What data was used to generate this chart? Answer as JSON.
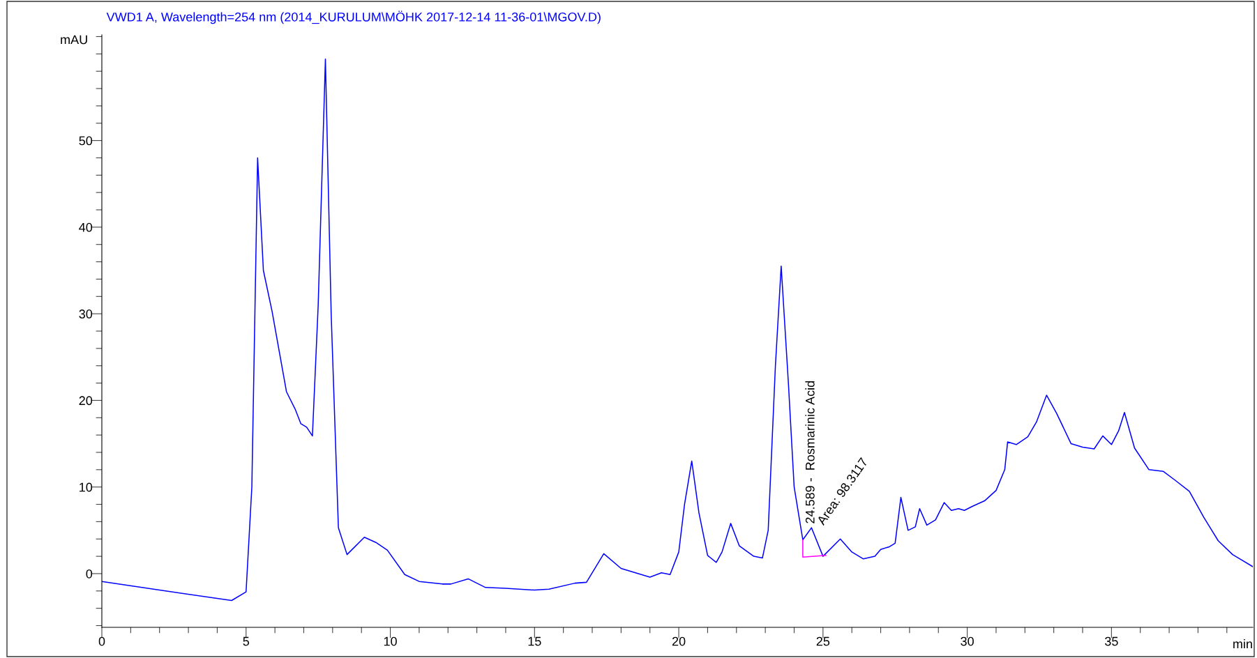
{
  "chart_data": {
    "type": "line",
    "title": "VWD1 A, Wavelength=254 nm (2014_KURULUM\\MÖHK 2017-12-14 11-36-01\\MGOV.D)",
    "ylabel": "mAU",
    "xlabel": "min",
    "series": [
      {
        "color": "#0000ff",
        "x": [
          0,
          2,
          4.5,
          5.0,
          5.2,
          5.4,
          5.6,
          5.9,
          6.4,
          6.7,
          6.9,
          7.1,
          7.3,
          7.5,
          7.75,
          7.95,
          8.2,
          8.5,
          9.1,
          9.5,
          9.9,
          10.5,
          11,
          11.8,
          12.1,
          12.7,
          13.3,
          14,
          15,
          15.5,
          16.4,
          16.8,
          17.4,
          18,
          18.5,
          19,
          19.4,
          19.7,
          20.0,
          20.2,
          20.45,
          20.7,
          21.0,
          21.3,
          21.5,
          21.8,
          22.1,
          22.6,
          22.9,
          23.1,
          23.35,
          23.55,
          23.8,
          24.0,
          24.3,
          24.6,
          25.0,
          25.6,
          26.0,
          26.4,
          26.8,
          27.0,
          27.3,
          27.5,
          27.7,
          27.95,
          28.2,
          28.35,
          28.6,
          28.9,
          29.2,
          29.45,
          29.7,
          29.9,
          30.2,
          30.6,
          31.0,
          31.3,
          31.4,
          31.7,
          32.1,
          32.4,
          32.75,
          33.1,
          33.6,
          34.0,
          34.4,
          34.7,
          35.0,
          35.25,
          35.45,
          35.8,
          36.3,
          36.8,
          37.2,
          37.7,
          38.2,
          38.7,
          39.2,
          39.9
        ],
        "values": [
          -0.9,
          -1.9,
          -3.1,
          -2.1,
          10,
          48.0,
          35,
          30.3,
          21,
          19,
          17.3,
          16.9,
          15.9,
          31,
          59.4,
          30,
          5.3,
          2.2,
          4.2,
          3.6,
          2.7,
          -0.1,
          -0.9,
          -1.2,
          -1.2,
          -0.6,
          -1.6,
          -1.7,
          -1.9,
          -1.8,
          -1.1,
          -1,
          2.3,
          0.6,
          0.1,
          -0.4,
          0.1,
          -0.1,
          2.5,
          8,
          13.0,
          7,
          2.1,
          1.3,
          2.5,
          5.8,
          3.2,
          2.0,
          1.8,
          5,
          24,
          35.5,
          22,
          10,
          3.9,
          5.3,
          2.0,
          4.0,
          2.5,
          1.7,
          2.0,
          2.8,
          3.1,
          3.5,
          8.8,
          5.0,
          5.4,
          7.5,
          5.6,
          6.2,
          8.2,
          7.3,
          7.5,
          7.3,
          7.8,
          8.4,
          9.6,
          12,
          15.2,
          14.9,
          15.8,
          17.5,
          20.6,
          18.5,
          15.0,
          14.6,
          14.4,
          15.9,
          14.9,
          16.5,
          18.6,
          14.5,
          12.0,
          11.8,
          10.8,
          9.5,
          6.5,
          3.8,
          2.2,
          0.8
        ]
      },
      {
        "color": "#ff00ff",
        "x": [
          24.3,
          24.3,
          25.1
        ],
        "values": [
          3.9,
          1.9,
          2.1
        ]
      }
    ],
    "annotations": [
      {
        "text": "24.589 -  Rosmarinic Acid",
        "x": 24.589,
        "y": 5.3
      },
      "Area: 98.3117"
    ],
    "xlim": [
      0,
      39.9
    ],
    "ylim": [
      -6.2,
      62.2
    ],
    "xticks": [
      0,
      {
        "value": 1,
        "label": null
      },
      {
        "value": 2,
        "label": null
      },
      {
        "value": 3,
        "label": null
      },
      {
        "value": 4,
        "label": null
      },
      5,
      {
        "value": 6,
        "label": null
      },
      {
        "value": 7,
        "label": null
      },
      {
        "value": 8,
        "label": null
      },
      {
        "value": 9,
        "label": null
      },
      10,
      {
        "value": 11,
        "label": null
      },
      {
        "value": 12,
        "label": null
      },
      {
        "value": 13,
        "label": null
      },
      {
        "value": 14,
        "label": null
      },
      15,
      {
        "value": 16,
        "label": null
      },
      {
        "value": 17,
        "label": null
      },
      {
        "value": 18,
        "label": null
      },
      {
        "value": 19,
        "label": null
      },
      20,
      {
        "value": 21,
        "label": null
      },
      {
        "value": 22,
        "label": null
      },
      {
        "value": 23,
        "label": null
      },
      {
        "value": 24,
        "label": null
      },
      25,
      {
        "value": 26,
        "label": null
      },
      {
        "value": 27,
        "label": null
      },
      {
        "value": 28,
        "label": null
      },
      {
        "value": 29,
        "label": null
      },
      30,
      {
        "value": 31,
        "label": null
      },
      {
        "value": 32,
        "label": null
      },
      {
        "value": 33,
        "label": null
      },
      {
        "value": 34,
        "label": null
      },
      35,
      {
        "value": 36,
        "label": null
      },
      {
        "value": 37,
        "label": null
      },
      {
        "value": 38,
        "label": null
      },
      {
        "value": 39,
        "label": null
      }
    ],
    "yticks": [
      {
        "value": -6,
        "label": null
      },
      {
        "value": -4,
        "label": null
      },
      {
        "value": -2,
        "label": null
      },
      0,
      {
        "value": 2,
        "label": null
      },
      {
        "value": 4,
        "label": null
      },
      {
        "value": 6,
        "label": null
      },
      {
        "value": 8,
        "label": null
      },
      10,
      {
        "value": 12,
        "label": null
      },
      {
        "value": 14,
        "label": null
      },
      {
        "value": 16,
        "label": null
      },
      {
        "value": 18,
        "label": null
      },
      20,
      {
        "value": 22,
        "label": null
      },
      {
        "value": 24,
        "label": null
      },
      {
        "value": 26,
        "label": null
      },
      {
        "value": 28,
        "label": null
      },
      30,
      {
        "value": 32,
        "label": null
      },
      {
        "value": 34,
        "label": null
      },
      {
        "value": 36,
        "label": null
      },
      {
        "value": 38,
        "label": null
      },
      40,
      {
        "value": 42,
        "label": null
      },
      {
        "value": 44,
        "label": null
      },
      {
        "value": 46,
        "label": null
      },
      {
        "value": 48,
        "label": null
      },
      50,
      {
        "value": 52,
        "label": null
      },
      {
        "value": 54,
        "label": null
      },
      {
        "value": 56,
        "label": null
      },
      {
        "value": 58,
        "label": null
      },
      {
        "value": 60,
        "label": null
      },
      {
        "value": 62,
        "label": null
      }
    ],
    "grid": false,
    "legend": false,
    "marker": "none",
    "line_style": "solid"
  }
}
